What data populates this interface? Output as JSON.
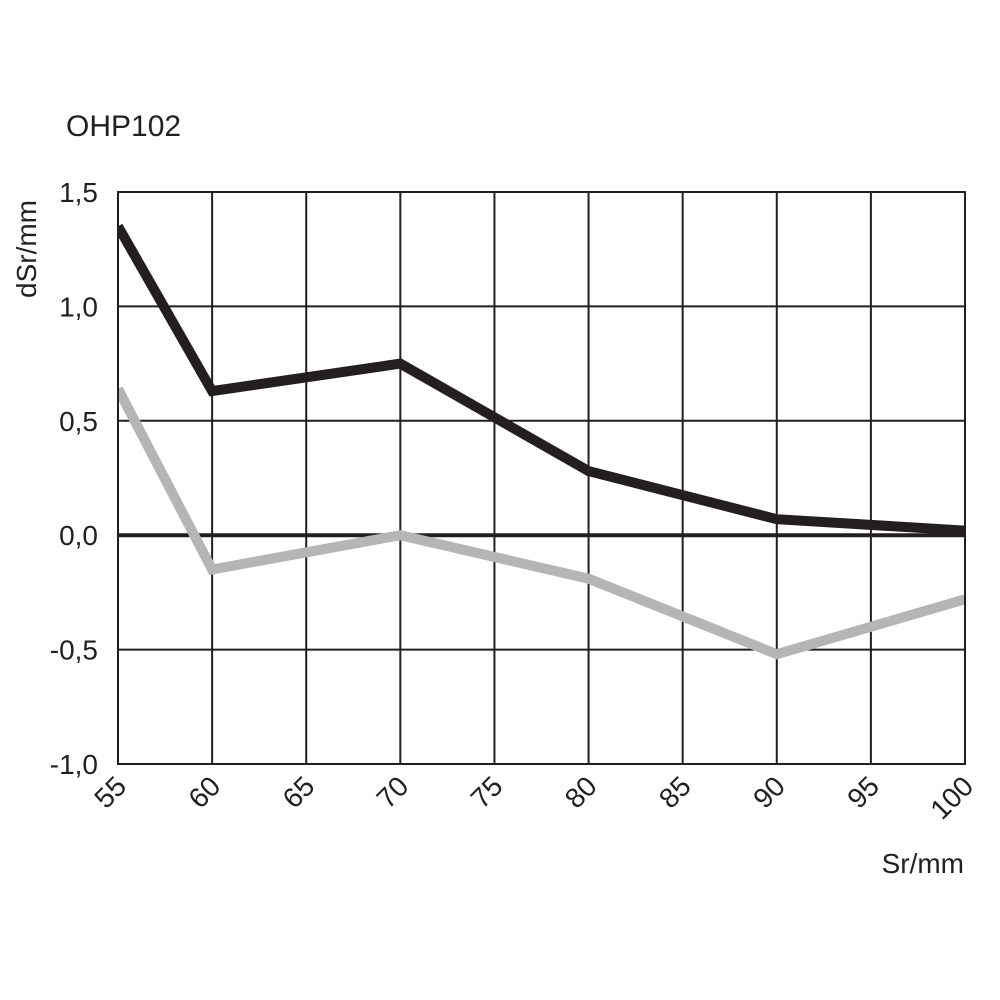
{
  "chart_data": {
    "type": "line",
    "title": "OHP102",
    "xlabel": "Sr/mm",
    "ylabel": "dSr/mm",
    "xlim": [
      55,
      100
    ],
    "ylim": [
      -1.0,
      1.5
    ],
    "x_ticks": [
      55,
      60,
      65,
      70,
      75,
      80,
      85,
      90,
      95,
      100
    ],
    "x_tick_labels": [
      "55",
      "60",
      "65",
      "70",
      "75",
      "80",
      "85",
      "90",
      "95",
      "100"
    ],
    "y_ticks": [
      -1.0,
      -0.5,
      0.0,
      0.5,
      1.0,
      1.5
    ],
    "y_tick_labels": [
      "-1,0",
      "-0,5",
      "0,0",
      "0,5",
      "1,0",
      "1,5"
    ],
    "grid": true,
    "series": [
      {
        "color": "#231f20",
        "x": [
          55,
          60,
          70,
          80,
          90,
          100
        ],
        "y": [
          1.35,
          0.63,
          0.75,
          0.28,
          0.07,
          0.02
        ]
      },
      {
        "color": "#b5b5b5",
        "x": [
          55,
          60,
          70,
          80,
          90,
          100
        ],
        "y": [
          0.64,
          -0.15,
          0.0,
          -0.19,
          -0.52,
          -0.28
        ]
      }
    ]
  }
}
